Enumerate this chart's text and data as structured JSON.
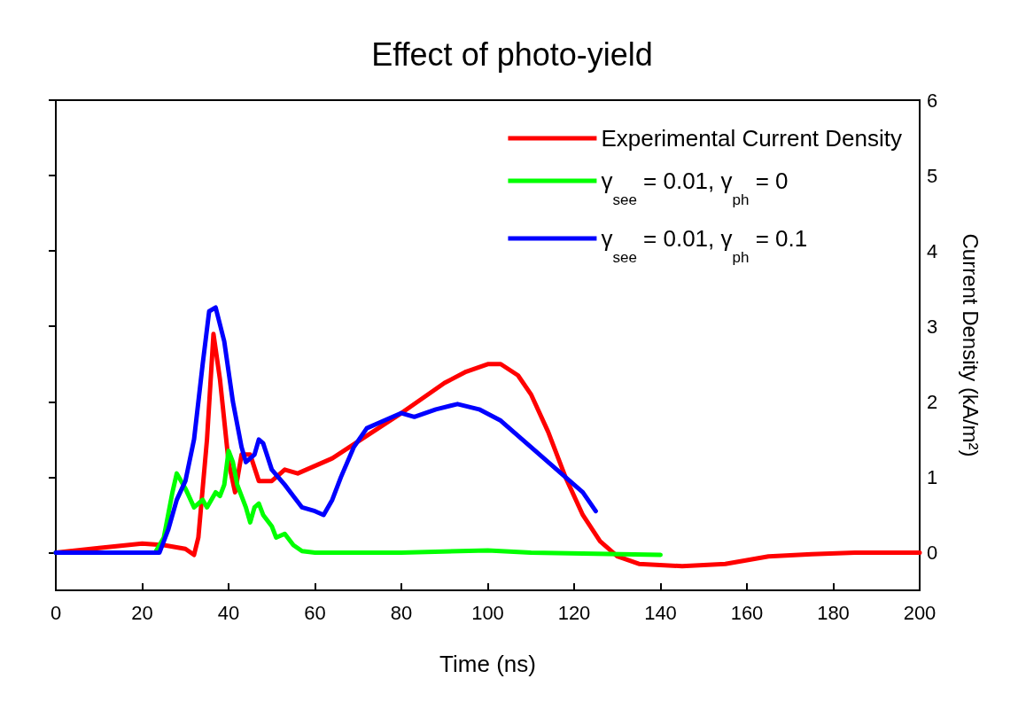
{
  "chart_data": {
    "type": "line",
    "title": "Effect of photo-yield",
    "xlabel": "Time (ns)",
    "ylabel": "Current Density (kA/m²)",
    "xlim": [
      0,
      200
    ],
    "xticks": [
      0,
      20,
      40,
      60,
      80,
      100,
      120,
      140,
      160,
      180,
      200
    ],
    "ylim": [
      -0.5,
      6
    ],
    "yticks": [
      0,
      1,
      2,
      3,
      4,
      5,
      6
    ],
    "grid": false,
    "legend": "top right",
    "marker": "none",
    "line_style": "solid",
    "series": [
      {
        "name": "Experimental Current Density",
        "color": "#ff0000",
        "x": [
          0,
          10,
          20,
          25,
          30,
          32,
          33,
          35,
          36.5,
          38,
          40,
          41.5,
          43,
          45,
          47,
          50,
          53,
          56,
          60,
          64,
          68,
          72,
          76,
          80,
          85,
          90,
          95,
          100,
          103,
          107,
          110,
          114,
          118,
          122,
          126,
          130,
          135,
          145,
          155,
          165,
          175,
          185,
          200
        ],
        "values": [
          0,
          0.06,
          0.12,
          0.1,
          0.05,
          -0.03,
          0.2,
          1.5,
          2.9,
          2.3,
          1.2,
          0.8,
          1.3,
          1.3,
          0.95,
          0.95,
          1.1,
          1.05,
          1.15,
          1.25,
          1.4,
          1.55,
          1.7,
          1.85,
          2.05,
          2.25,
          2.4,
          2.5,
          2.5,
          2.35,
          2.1,
          1.6,
          1.0,
          0.5,
          0.15,
          -0.05,
          -0.15,
          -0.18,
          -0.15,
          -0.05,
          -0.02,
          0,
          0
        ]
      },
      {
        "name": "γ$_{see}$ = 0.01, γ$_{ph}$ = 0",
        "color": "#00ff00",
        "x": [
          0,
          23,
          25,
          27,
          28,
          30,
          32,
          34,
          35,
          37,
          38,
          39,
          40,
          41,
          42,
          44,
          45,
          46,
          47,
          48,
          50,
          51,
          53,
          55,
          57,
          60,
          80,
          100,
          110,
          140
        ],
        "values": [
          0,
          0,
          0.2,
          0.8,
          1.05,
          0.85,
          0.6,
          0.7,
          0.6,
          0.8,
          0.75,
          0.9,
          1.35,
          1.2,
          0.9,
          0.6,
          0.4,
          0.6,
          0.65,
          0.5,
          0.35,
          0.2,
          0.25,
          0.1,
          0.02,
          0,
          0,
          0.03,
          0,
          -0.03
        ]
      },
      {
        "name": "γ$_{see}$ = 0.01, γ$_{ph}$ = 0.1",
        "color": "#0000ff",
        "x": [
          0,
          24,
          26,
          28,
          30,
          32,
          34,
          35.5,
          37,
          39,
          41,
          43,
          44,
          46,
          47,
          48,
          50,
          53,
          55,
          57,
          60,
          62,
          64,
          66,
          69,
          72,
          76,
          80,
          83,
          88,
          93,
          98,
          103,
          108,
          113,
          118,
          122,
          125
        ],
        "values": [
          0,
          0,
          0.3,
          0.7,
          0.95,
          1.5,
          2.5,
          3.2,
          3.25,
          2.8,
          2.0,
          1.4,
          1.2,
          1.3,
          1.5,
          1.45,
          1.1,
          0.9,
          0.75,
          0.6,
          0.55,
          0.5,
          0.7,
          1.0,
          1.4,
          1.65,
          1.75,
          1.85,
          1.8,
          1.9,
          1.97,
          1.9,
          1.75,
          1.5,
          1.25,
          1.0,
          0.8,
          0.55
        ]
      }
    ]
  }
}
